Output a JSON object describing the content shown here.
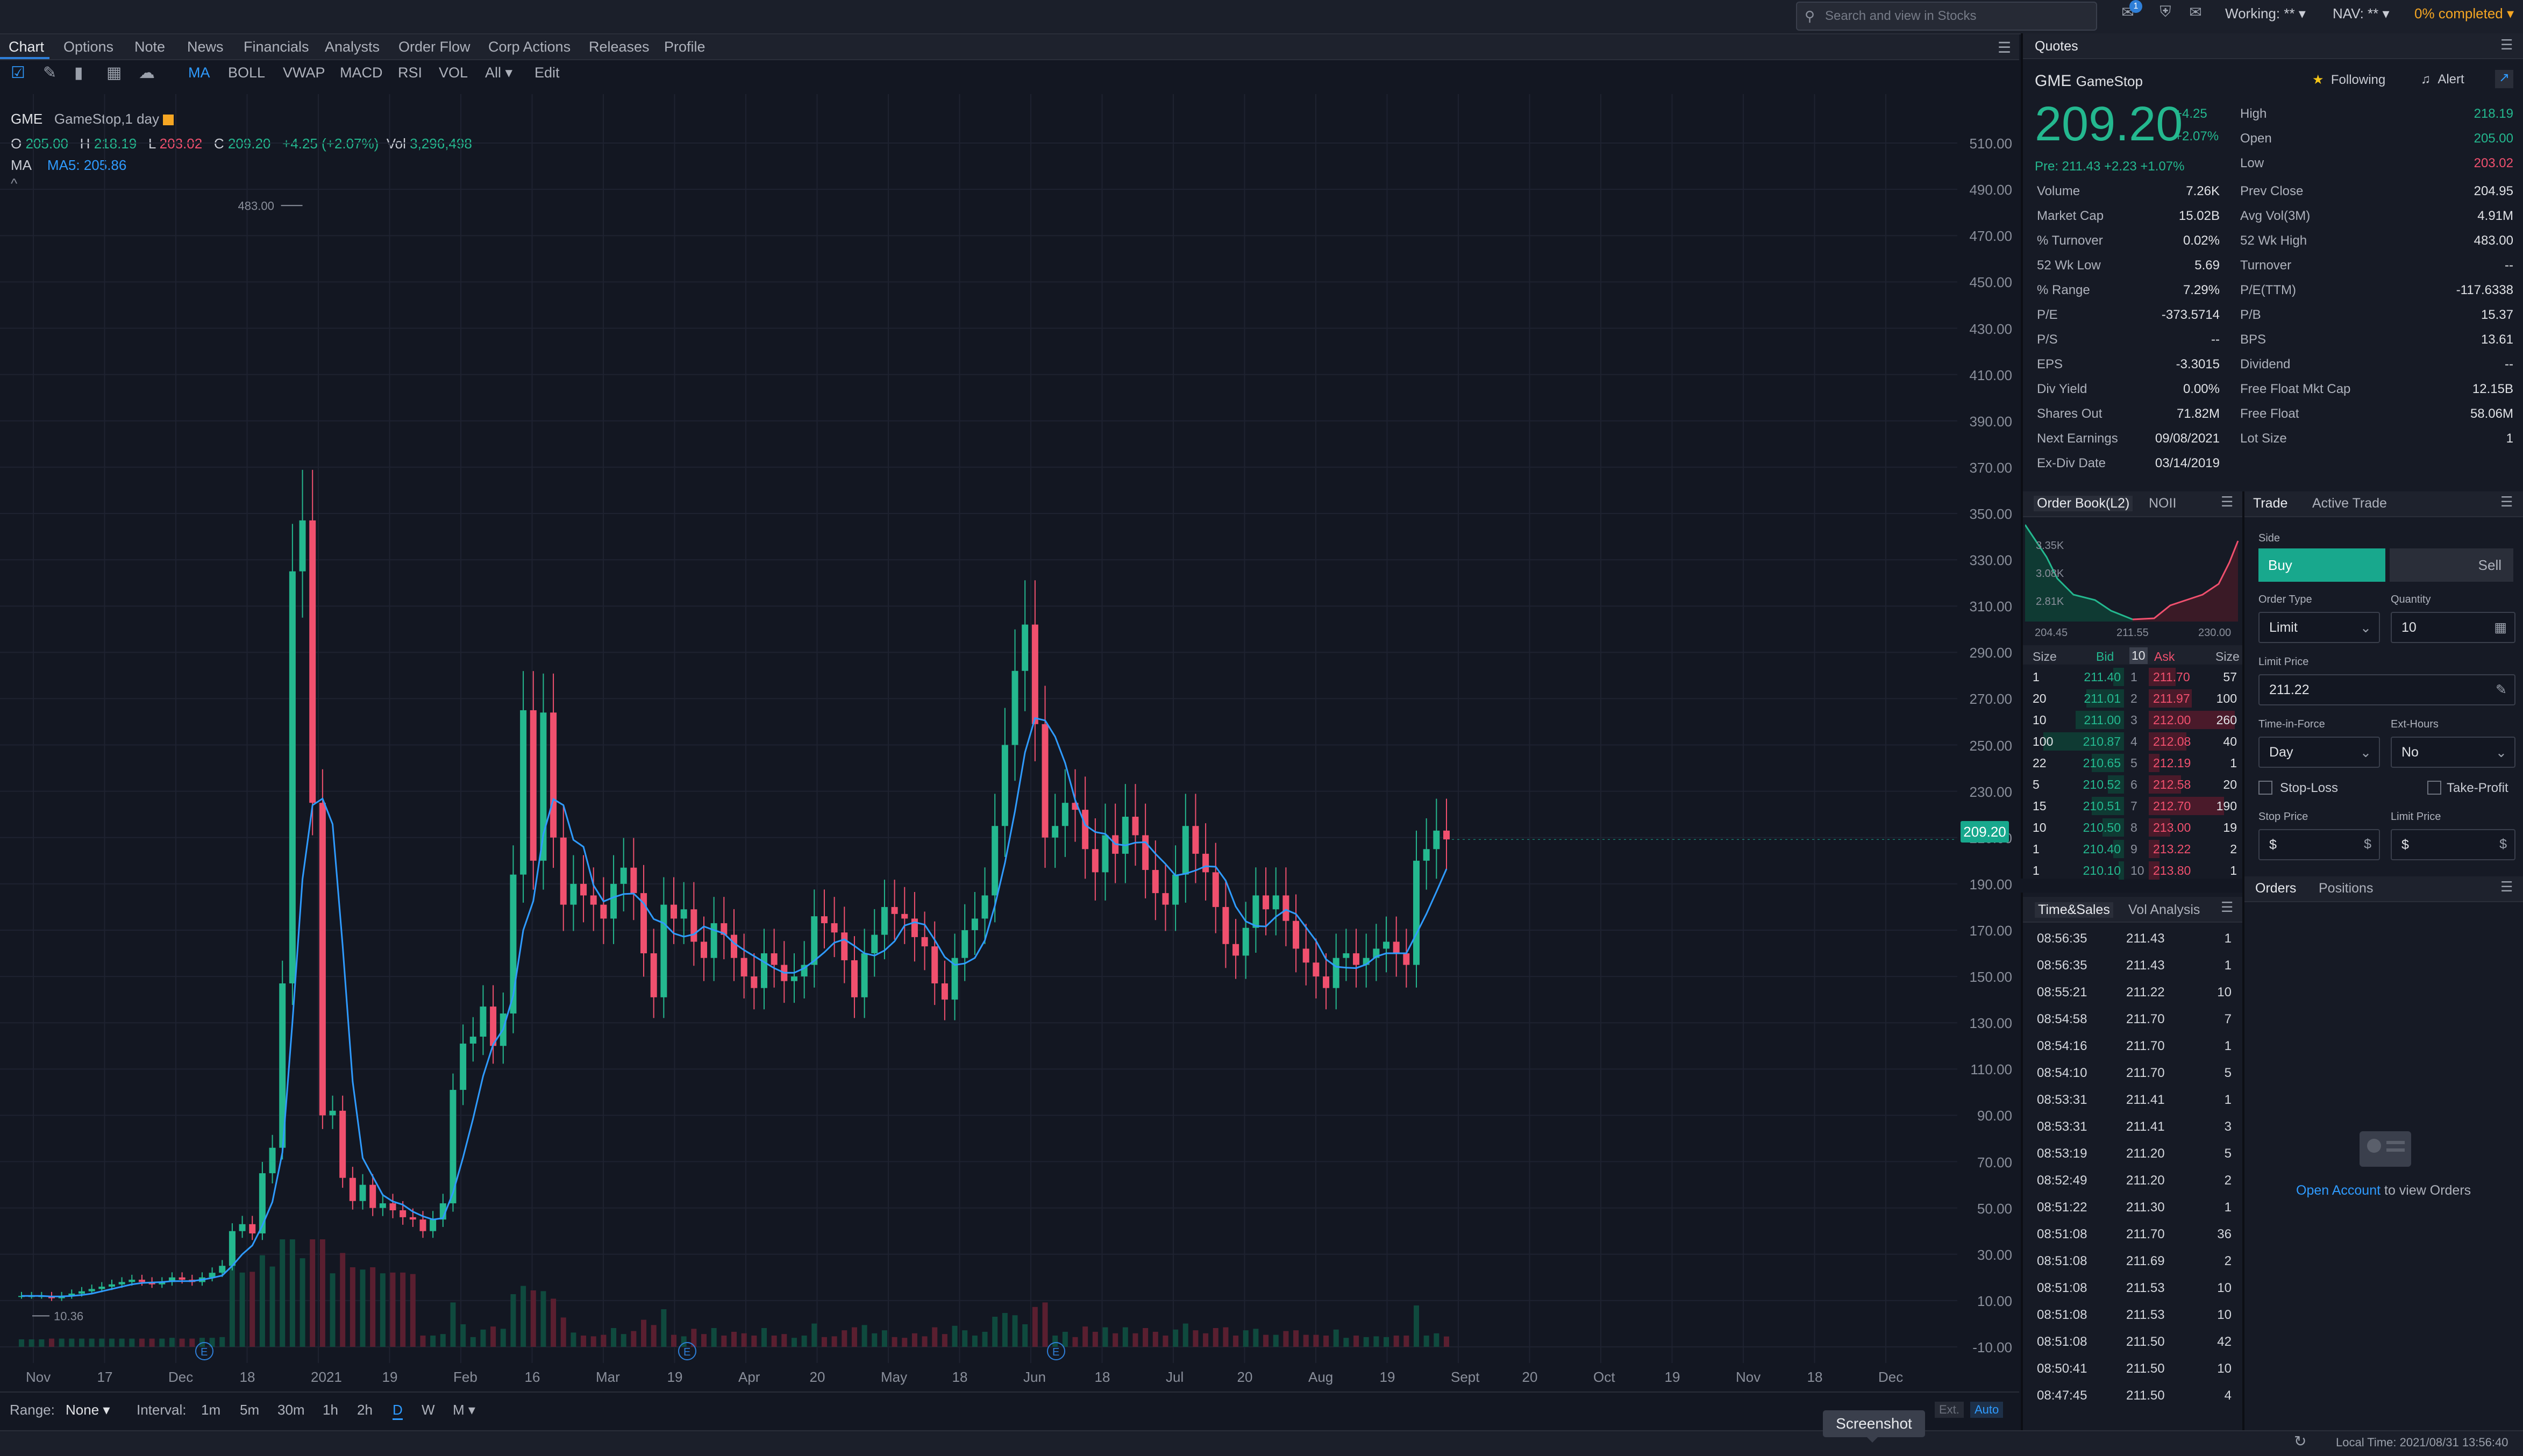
{
  "header": {
    "search_placeholder": "Search and view in Stocks",
    "notif_count": "1",
    "working": "Working: **",
    "nav": "NAV: **",
    "completed": "0% completed"
  },
  "tabs": [
    "Chart",
    "Options",
    "Note",
    "News",
    "Financials",
    "Analysts",
    "Order Flow",
    "Corp Actions",
    "Releases",
    "Profile"
  ],
  "tools": {
    "indicators": [
      "MA",
      "BOLL",
      "VWAP",
      "MACD",
      "RSI",
      "VOL"
    ],
    "all": "All",
    "edit": "Edit"
  },
  "legend": {
    "symbol": "GME",
    "desc": "GameStop,1 day",
    "o_lbl": "O",
    "o": "205.00",
    "h_lbl": "H",
    "h": "218.19",
    "l_lbl": "L",
    "l": "203.02",
    "c_lbl": "C",
    "c": "209.20",
    "chg": "+4.25 (+2.07%)",
    "vol_lbl": "Vol",
    "vol": "3,296,498",
    "ma_lbl": "MA",
    "ma": "MA5: 205.86",
    "high_marker": "483.00",
    "low_marker": "10.36",
    "collapse": "^"
  },
  "chart_data": {
    "type": "candlestick",
    "title": "GME GameStop, 1 day",
    "ylim": [
      -10,
      520
    ],
    "y_ticks": [
      "510.00",
      "490.00",
      "470.00",
      "450.00",
      "430.00",
      "410.00",
      "390.00",
      "370.00",
      "350.00",
      "330.00",
      "310.00",
      "290.00",
      "270.00",
      "250.00",
      "230.00",
      "210.00",
      "190.00",
      "170.00",
      "150.00",
      "130.00",
      "110.00",
      "90.00",
      "70.00",
      "50.00",
      "30.00",
      "10.00",
      "-10.00"
    ],
    "x_ticks": [
      "Nov",
      "17",
      "Dec",
      "18",
      "2021",
      "19",
      "Feb",
      "16",
      "Mar",
      "19",
      "Apr",
      "20",
      "May",
      "18",
      "Jun",
      "18",
      "Jul",
      "20",
      "Aug",
      "19",
      "Sept",
      "20",
      "Oct",
      "19",
      "Nov",
      "18",
      "Dec"
    ],
    "last_price": "209.20",
    "annotated_high": 483.0,
    "annotated_low": 10.36,
    "series": [
      {
        "name": "GME",
        "close": [
          12,
          12,
          12,
          11,
          12,
          13,
          14,
          15,
          16,
          17,
          18,
          19,
          18,
          17,
          18,
          20,
          19,
          18,
          20,
          22,
          25,
          40,
          43,
          39,
          65,
          76,
          147,
          325,
          347,
          225,
          90,
          92,
          63,
          53,
          60,
          50,
          52,
          49,
          46,
          45,
          40,
          45,
          52,
          101,
          121,
          124,
          137,
          120,
          134,
          194,
          265,
          200,
          264,
          210,
          181,
          190,
          185,
          181,
          175,
          190,
          197,
          186,
          160,
          141,
          181,
          175,
          179,
          165,
          158,
          173,
          168,
          158,
          150,
          145,
          160,
          155,
          148,
          150,
          155,
          176,
          173,
          169,
          157,
          141,
          160,
          168,
          180,
          177,
          175,
          167,
          163,
          147,
          140,
          158,
          170,
          175,
          185,
          215,
          250,
          282,
          302,
          259,
          210,
          215,
          225,
          222,
          205,
          195,
          211,
          203,
          219,
          211,
          196,
          186,
          181,
          194,
          215,
          203,
          195,
          180,
          164,
          159,
          171,
          185,
          179,
          185,
          174,
          162,
          156,
          150,
          145,
          158,
          160,
          155,
          158,
          162,
          165,
          160,
          155,
          200,
          205,
          213,
          209.2
        ]
      }
    ],
    "ma_label": "MA5",
    "ma_value": 205.86
  },
  "range": {
    "range_lbl": "Range:",
    "range_val": "None",
    "interval_lbl": "Interval:",
    "intervals": [
      "1m",
      "5m",
      "30m",
      "1h",
      "2h",
      "D",
      "W",
      "M"
    ],
    "ext": "Ext.",
    "auto": "Auto"
  },
  "status": {
    "tooltip": "Screenshot",
    "local_time": "Local Time: 2021/08/31 13:56:40"
  },
  "quotes": {
    "tab": "Quotes",
    "symbol": "GME",
    "name": "GameStop",
    "following": "Following",
    "alert": "Alert",
    "price": "209.20",
    "chg": "+4.25",
    "chg_pct": "+2.07%",
    "pre": "Pre: 211.43 +2.23 +1.07%",
    "right_top": [
      {
        "label": "High",
        "value": "218.19",
        "color": "#24b88f"
      },
      {
        "label": "Open",
        "value": "205.00",
        "color": "#24b88f"
      },
      {
        "label": "Low",
        "value": "203.02",
        "color": "#f0506e"
      }
    ],
    "left_stats": [
      {
        "label": "Volume",
        "value": "7.26K"
      },
      {
        "label": "Market Cap",
        "value": "15.02B"
      },
      {
        "label": "% Turnover",
        "value": "0.02%"
      },
      {
        "label": "52 Wk Low",
        "value": "5.69"
      },
      {
        "label": "% Range",
        "value": "7.29%"
      },
      {
        "label": "P/E",
        "value": "-373.5714"
      },
      {
        "label": "P/S",
        "value": "--"
      },
      {
        "label": "EPS",
        "value": "-3.3015"
      },
      {
        "label": "Div Yield",
        "value": "0.00%"
      },
      {
        "label": "Shares Out",
        "value": "71.82M"
      },
      {
        "label": "Next Earnings",
        "value": "09/08/2021"
      },
      {
        "label": "Ex-Div Date",
        "value": "03/14/2019"
      }
    ],
    "right_stats": [
      {
        "label": "Prev Close",
        "value": "204.95"
      },
      {
        "label": "Avg Vol(3M)",
        "value": "4.91M"
      },
      {
        "label": "52 Wk High",
        "value": "483.00"
      },
      {
        "label": "Turnover",
        "value": "--"
      },
      {
        "label": "P/E(TTM)",
        "value": "-117.6338"
      },
      {
        "label": "P/B",
        "value": "15.37"
      },
      {
        "label": "BPS",
        "value": "13.61"
      },
      {
        "label": "Dividend",
        "value": "--"
      },
      {
        "label": "Free Float Mkt Cap",
        "value": "12.15B"
      },
      {
        "label": "Free Float",
        "value": "58.06M"
      },
      {
        "label": "Lot Size",
        "value": "1"
      }
    ]
  },
  "orderbook": {
    "tabs": [
      "Order Book(L2)",
      "NOII"
    ],
    "depth_labels": [
      "3.35K",
      "3.08K",
      "2.81K"
    ],
    "depth_x": [
      "204.45",
      "211.55",
      "230.00"
    ],
    "headers": {
      "size": "Size",
      "bid": "Bid",
      "lvl": "10",
      "ask": "Ask",
      "size2": "Size"
    },
    "rows": [
      {
        "bsize": "1",
        "bid": "211.40",
        "lvl": "1",
        "ask": "211.70",
        "asize": "57"
      },
      {
        "bsize": "20",
        "bid": "211.01",
        "lvl": "2",
        "ask": "211.97",
        "asize": "100"
      },
      {
        "bsize": "10",
        "bid": "211.00",
        "lvl": "3",
        "ask": "212.00",
        "asize": "260"
      },
      {
        "bsize": "100",
        "bid": "210.87",
        "lvl": "4",
        "ask": "212.08",
        "asize": "40"
      },
      {
        "bsize": "22",
        "bid": "210.65",
        "lvl": "5",
        "ask": "212.19",
        "asize": "1"
      },
      {
        "bsize": "5",
        "bid": "210.52",
        "lvl": "6",
        "ask": "212.58",
        "asize": "20"
      },
      {
        "bsize": "15",
        "bid": "210.51",
        "lvl": "7",
        "ask": "212.70",
        "asize": "190"
      },
      {
        "bsize": "10",
        "bid": "210.50",
        "lvl": "8",
        "ask": "213.00",
        "asize": "19"
      },
      {
        "bsize": "1",
        "bid": "210.40",
        "lvl": "9",
        "ask": "213.22",
        "asize": "2"
      },
      {
        "bsize": "1",
        "bid": "210.10",
        "lvl": "10",
        "ask": "213.80",
        "asize": "1"
      }
    ]
  },
  "trade": {
    "tabs": [
      "Trade",
      "Active Trade"
    ],
    "side_lbl": "Side",
    "buy": "Buy",
    "sell": "Sell",
    "order_type_lbl": "Order Type",
    "order_type": "Limit",
    "qty_lbl": "Quantity",
    "qty": "10",
    "limit_price_lbl": "Limit Price",
    "limit_price": "211.22",
    "tif_lbl": "Time-in-Force",
    "tif": "Day",
    "ext_lbl": "Ext-Hours",
    "ext": "No",
    "stop_loss": "Stop-Loss",
    "take_profit": "Take-Profit",
    "stop_price_lbl": "Stop Price",
    "stop_price": "$",
    "limit_price2_lbl": "Limit Price",
    "limit_price2": "$"
  },
  "timesales": {
    "tabs": [
      "Time&Sales",
      "Vol Analysis"
    ],
    "rows": [
      {
        "t": "08:56:35",
        "p": "211.43",
        "s": "1"
      },
      {
        "t": "08:56:35",
        "p": "211.43",
        "s": "1"
      },
      {
        "t": "08:55:21",
        "p": "211.22",
        "s": "10"
      },
      {
        "t": "08:54:58",
        "p": "211.70",
        "s": "7"
      },
      {
        "t": "08:54:16",
        "p": "211.70",
        "s": "1"
      },
      {
        "t": "08:54:10",
        "p": "211.70",
        "s": "5"
      },
      {
        "t": "08:53:31",
        "p": "211.41",
        "s": "1"
      },
      {
        "t": "08:53:31",
        "p": "211.41",
        "s": "3"
      },
      {
        "t": "08:53:19",
        "p": "211.20",
        "s": "5"
      },
      {
        "t": "08:52:49",
        "p": "211.20",
        "s": "2"
      },
      {
        "t": "08:51:22",
        "p": "211.30",
        "s": "1"
      },
      {
        "t": "08:51:08",
        "p": "211.70",
        "s": "36"
      },
      {
        "t": "08:51:08",
        "p": "211.69",
        "s": "2"
      },
      {
        "t": "08:51:08",
        "p": "211.53",
        "s": "10"
      },
      {
        "t": "08:51:08",
        "p": "211.53",
        "s": "10"
      },
      {
        "t": "08:51:08",
        "p": "211.50",
        "s": "42"
      },
      {
        "t": "08:50:41",
        "p": "211.50",
        "s": "10"
      },
      {
        "t": "08:47:45",
        "p": "211.50",
        "s": "4"
      }
    ]
  },
  "orders": {
    "tabs": [
      "Orders",
      "Positions"
    ],
    "open_account": "Open Account",
    "to_view": " to view Orders"
  }
}
